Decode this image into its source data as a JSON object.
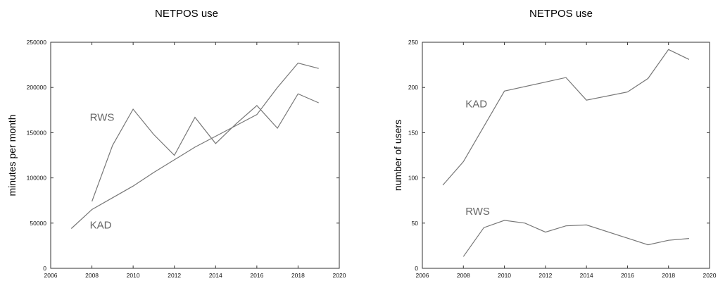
{
  "chart_data": [
    {
      "type": "line",
      "title": "NETPOS use",
      "xlabel": "",
      "ylabel": "minutes per month",
      "xlim": [
        2006,
        2020
      ],
      "ylim": [
        0,
        250000
      ],
      "xticks": [
        2006,
        2008,
        2010,
        2012,
        2014,
        2016,
        2018,
        2020
      ],
      "yticks": [
        0,
        50000,
        100000,
        150000,
        200000,
        250000
      ],
      "grid": false,
      "legend": "none",
      "series": [
        {
          "name": "RWS",
          "x": [
            2008,
            2009,
            2010,
            2011,
            2012,
            2013,
            2014,
            2015,
            2016,
            2017,
            2018,
            2019
          ],
          "y": [
            74000,
            136000,
            176000,
            148000,
            125000,
            167000,
            138000,
            160000,
            180000,
            155000,
            193000,
            183000
          ]
        },
        {
          "name": "KAD",
          "x": [
            2007,
            2008,
            2009,
            2010,
            2011,
            2012,
            2013,
            2014,
            2015,
            2016,
            2017,
            2018,
            2019
          ],
          "y": [
            44000,
            65000,
            78000,
            91000,
            106000,
            120000,
            134000,
            146000,
            158000,
            170000,
            200000,
            227000,
            221000
          ]
        }
      ],
      "annotations": [
        {
          "text": "RWS",
          "x": 2007.9,
          "y": 163000
        },
        {
          "text": "KAD",
          "x": 2007.9,
          "y": 44000
        }
      ]
    },
    {
      "type": "line",
      "title": "NETPOS use",
      "xlabel": "",
      "ylabel": "number of users",
      "xlim": [
        2006,
        2020
      ],
      "ylim": [
        0,
        250
      ],
      "xticks": [
        2006,
        2008,
        2010,
        2012,
        2014,
        2016,
        2018,
        2020
      ],
      "yticks": [
        0,
        50,
        100,
        150,
        200,
        250
      ],
      "grid": false,
      "legend": "none",
      "series": [
        {
          "name": "KAD",
          "x": [
            2007,
            2008,
            2010,
            2013,
            2014,
            2016,
            2017,
            2018,
            2019
          ],
          "y": [
            92,
            118,
            196,
            211,
            186,
            195,
            210,
            242,
            231
          ]
        },
        {
          "name": "RWS",
          "x": [
            2008,
            2009,
            2010,
            2011,
            2012,
            2013,
            2014,
            2017,
            2018,
            2019
          ],
          "y": [
            13,
            45,
            53,
            50,
            40,
            47,
            48,
            26,
            31,
            33
          ]
        }
      ],
      "annotations": [
        {
          "text": "KAD",
          "x": 2008.1,
          "y": 178
        },
        {
          "text": "RWS",
          "x": 2008.1,
          "y": 59
        }
      ]
    }
  ]
}
